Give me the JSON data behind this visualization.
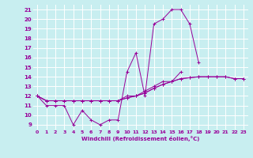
{
  "title": "",
  "xlabel": "Windchill (Refroidissement éolien,°C)",
  "ylabel": "",
  "xlim": [
    -0.5,
    23.5
  ],
  "ylim": [
    8.5,
    21.5
  ],
  "xticks": [
    0,
    1,
    2,
    3,
    4,
    5,
    6,
    7,
    8,
    9,
    10,
    11,
    12,
    13,
    14,
    15,
    16,
    17,
    18,
    19,
    20,
    21,
    22,
    23
  ],
  "yticks": [
    9,
    10,
    11,
    12,
    13,
    14,
    15,
    16,
    17,
    18,
    19,
    20,
    21
  ],
  "bg_color": "#c8eef0",
  "line_color": "#990099",
  "grid_color": "#ffffff",
  "series": [
    [
      12.0,
      11.0,
      11.0,
      11.0,
      9.0,
      10.5,
      9.5,
      9.0,
      9.5,
      9.5,
      14.5,
      16.5,
      12.0,
      19.5,
      20.0,
      21.0,
      21.0,
      19.5,
      15.5,
      null,
      null,
      null,
      null,
      null
    ],
    [
      12.0,
      11.5,
      11.5,
      11.5,
      11.5,
      11.5,
      11.5,
      11.5,
      11.5,
      11.5,
      12.0,
      12.0,
      12.5,
      13.0,
      13.5,
      13.5,
      14.5,
      null,
      null,
      null,
      null,
      null,
      null,
      null
    ],
    [
      12.0,
      11.5,
      11.5,
      11.5,
      11.5,
      11.5,
      11.5,
      11.5,
      11.5,
      11.5,
      11.8,
      12.0,
      12.3,
      12.8,
      13.2,
      13.5,
      13.8,
      13.9,
      14.0,
      14.0,
      14.0,
      14.0,
      13.8,
      13.8
    ],
    [
      12.0,
      11.5,
      11.5,
      11.5,
      11.5,
      11.5,
      11.5,
      11.5,
      11.5,
      11.5,
      11.8,
      12.0,
      12.3,
      12.8,
      13.2,
      13.5,
      13.8,
      13.9,
      14.0,
      14.0,
      14.0,
      14.0,
      13.8,
      13.8
    ]
  ]
}
